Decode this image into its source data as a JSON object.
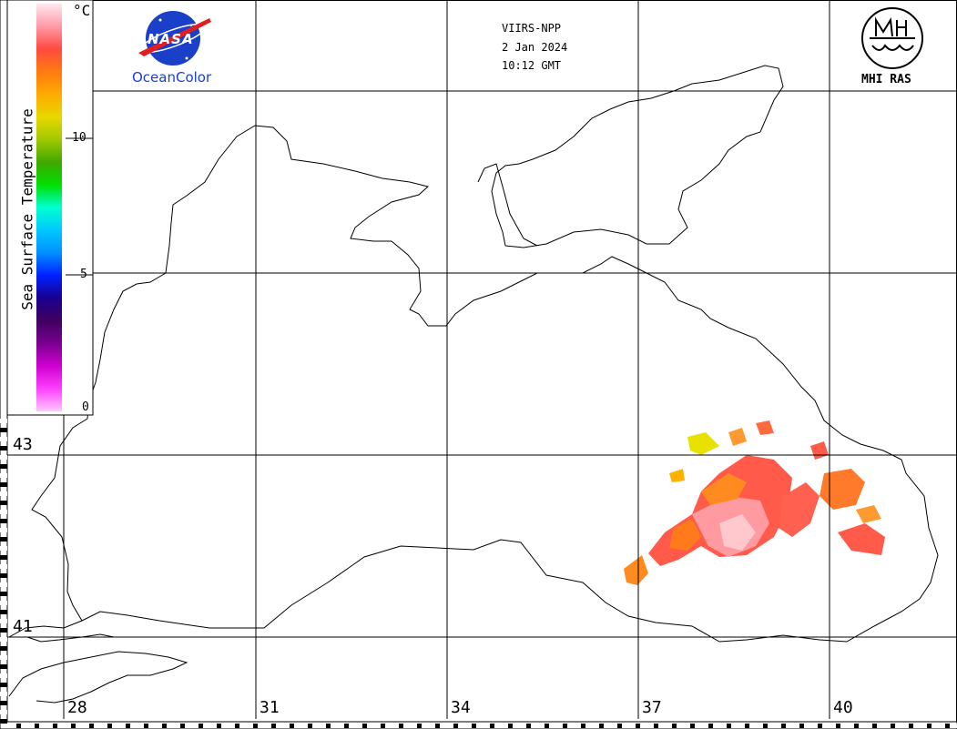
{
  "header": {
    "satellite": "VIIRS-NPP",
    "date": "2 Jan 2024",
    "time": "10:12 GMT"
  },
  "logos": {
    "nasa_text": "NASA",
    "oceancolor": "OceanColor",
    "mhi": "MHI RAS"
  },
  "colorbar": {
    "title": "Sea Surface Temperature",
    "unit": "°C",
    "ticks": [
      "10",
      "5",
      "0"
    ],
    "colors": [
      "#ffe8ee",
      "#ff9aa8",
      "#ff4a40",
      "#ff7a10",
      "#ffaa00",
      "#e8d800",
      "#a0c800",
      "#40a800",
      "#00e000",
      "#00ffd0",
      "#00c8ff",
      "#0090ff",
      "#0020ff",
      "#1a0090",
      "#400060",
      "#7a0090",
      "#d000d0",
      "#ff40ff",
      "#ffc8ff"
    ]
  },
  "grid": {
    "lat_labels": [
      "43",
      "41"
    ],
    "lon_labels": [
      "28",
      "31",
      "34",
      "37",
      "40"
    ]
  }
}
